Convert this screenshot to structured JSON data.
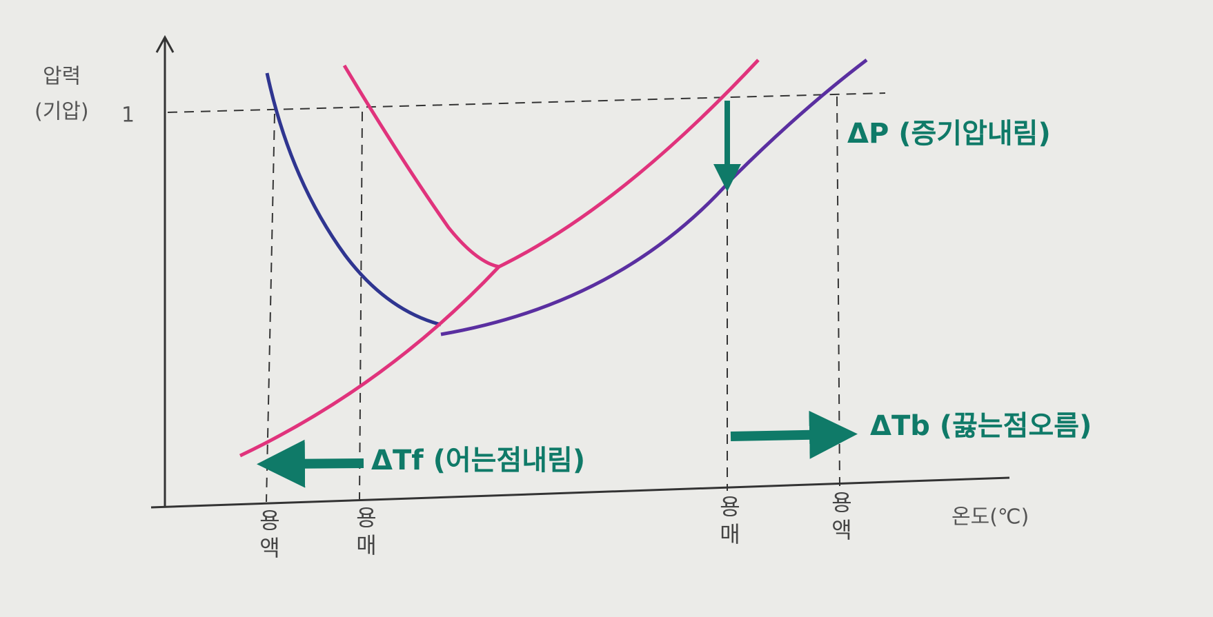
{
  "axes": {
    "y_label": "압력",
    "y_unit": "(기압)",
    "y_tick": "1",
    "x_label": "온도(℃)"
  },
  "x_marks": [
    "용액",
    "용매",
    "용매",
    "용액"
  ],
  "annotations": {
    "delta_p": "ΔP (증기압내림)",
    "delta_tf": "ΔTf (어는점내림)",
    "delta_tb": "ΔTb (끓는점오름)"
  }
}
